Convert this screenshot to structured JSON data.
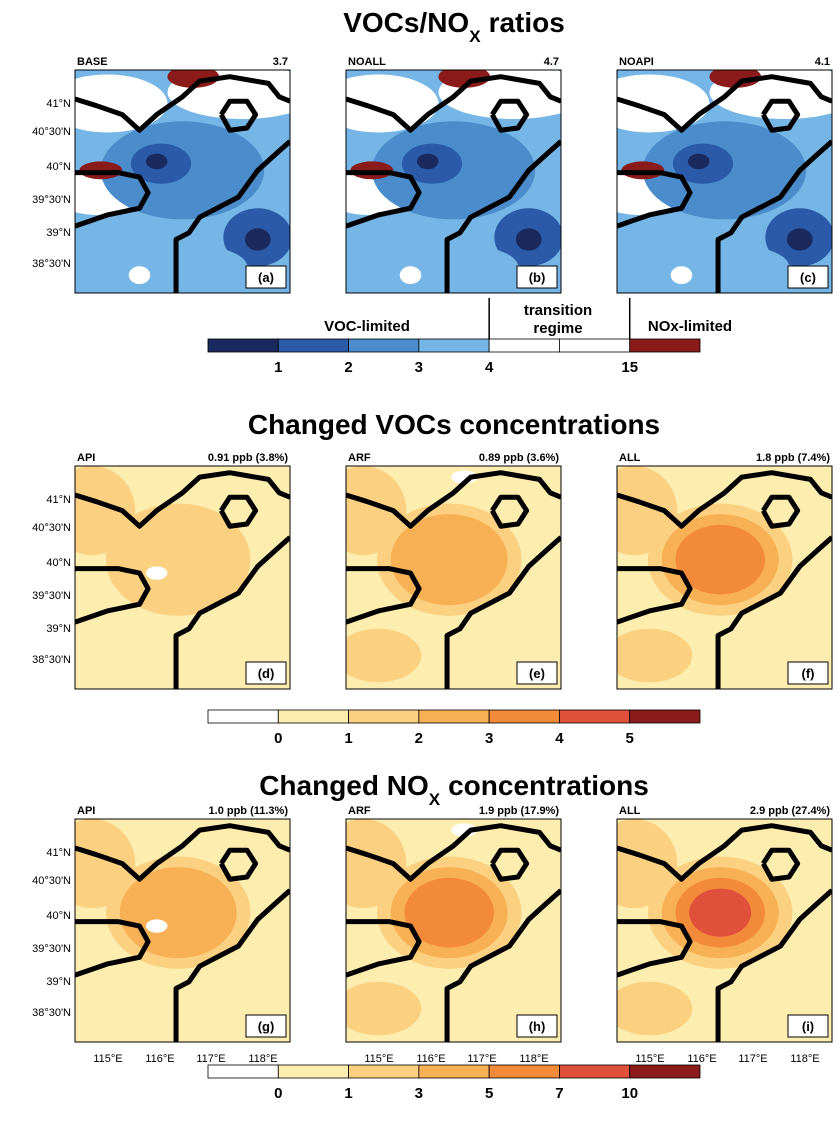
{
  "sections": [
    {
      "title": [
        "VOCs/NO",
        "X",
        "ratios"
      ],
      "panels": [
        {
          "name": "BASE",
          "value": "3.7",
          "letter": "(a)"
        },
        {
          "name": "NOALL",
          "value": "4.7",
          "letter": "(b)"
        },
        {
          "name": "NOAPI",
          "value": "4.1",
          "letter": "(c)"
        }
      ],
      "colorbar": {
        "colors": [
          "#1b2a5e",
          "#2a5aa8",
          "#4a8ccc",
          "#76b6e6",
          "#ffffff",
          "#ffffff",
          "#8b1a1a"
        ],
        "ticks": [
          "1",
          "2",
          "3",
          "4",
          "15"
        ],
        "regimes": [
          "VOC-limited",
          "transition",
          "regime",
          "NOx-limited"
        ]
      }
    },
    {
      "title": [
        "Changed VOCs concentrations"
      ],
      "panels": [
        {
          "name": "API",
          "value": "0.91 ppb (3.8%)",
          "letter": "(d)"
        },
        {
          "name": "ARF",
          "value": "0.89 ppb (3.6%)",
          "letter": "(e)"
        },
        {
          "name": "ALL",
          "value": "1.8 ppb (7.4%)",
          "letter": "(f)"
        }
      ],
      "colorbar": {
        "colors": [
          "#ffffff",
          "#fdeeb0",
          "#fbd080",
          "#f8b055",
          "#f38a3a",
          "#e0503a",
          "#8b1a1a"
        ],
        "ticks": [
          "0",
          "1",
          "2",
          "3",
          "4",
          "5"
        ]
      }
    },
    {
      "title": [
        "Changed NO",
        "X",
        "concentrations"
      ],
      "panels": [
        {
          "name": "API",
          "value": "1.0 ppb (11.3%)",
          "letter": "(g)"
        },
        {
          "name": "ARF",
          "value": "1.9 ppb (17.9%)",
          "letter": "(h)"
        },
        {
          "name": "ALL",
          "value": "2.9 ppb (27.4%)",
          "letter": "(i)"
        }
      ],
      "colorbar": {
        "colors": [
          "#ffffff",
          "#fdeeb0",
          "#fbd080",
          "#f8b055",
          "#f38a3a",
          "#e0503a",
          "#8b1a1a"
        ],
        "ticks": [
          "0",
          "1",
          "3",
          "5",
          "7",
          "10"
        ]
      }
    }
  ],
  "lat_labels": [
    "41°N",
    "40°30'N",
    "40°N",
    "39°30'N",
    "39°N",
    "38°30'N"
  ],
  "lon_labels": [
    "115°E",
    "116°E",
    "117°E",
    "118°E"
  ]
}
